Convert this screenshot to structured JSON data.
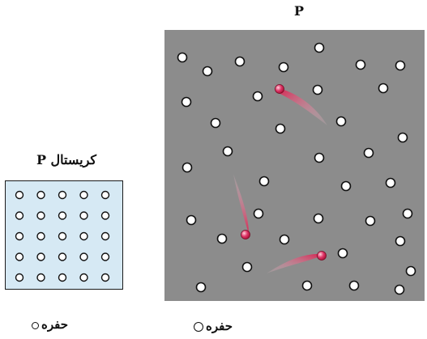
{
  "crystal": {
    "title": "کریستال P"
  },
  "panel": {
    "title": "P"
  },
  "legend": {
    "hole_label": "حفره",
    "icon": "open-circle-icon"
  },
  "colors": {
    "panel_bg": "#8c8c8c",
    "crystal_bg": "#d6e9f4",
    "hole_fill": "#ffffff",
    "moving_hole": "#d8204f"
  }
}
